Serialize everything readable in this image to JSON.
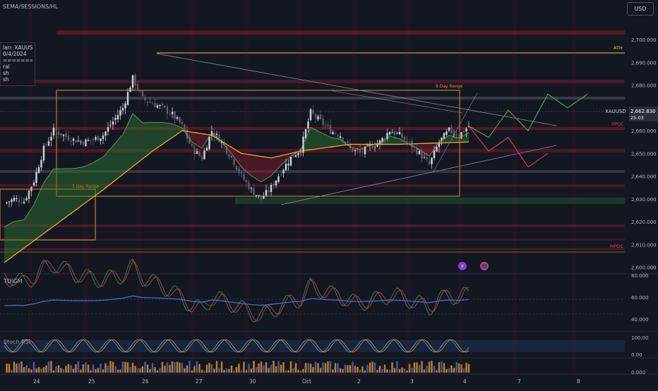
{
  "header": {
    "indicator_title": "SEMA/SESSIONS/HL",
    "currency_button": "USD"
  },
  "legend": {
    "lines": [
      "lan: XAUUSD",
      "0/4/2024",
      "=========",
      "ral",
      "sh",
      "sh"
    ]
  },
  "price_axis": {
    "labels": [
      "2,700.000",
      "2,690.000",
      "2,680.000",
      "2,670.000",
      "2,660.000",
      "2,650.000",
      "2,640.000",
      "2,630.000",
      "2,620.000",
      "2,610.000",
      "2,600.000"
    ],
    "current_symbol": "XAUUSD",
    "current_price": "2,662.830",
    "countdown": "25:03",
    "ath_label": "ATH",
    "ypoc_label": "YPOC",
    "mpoc_label": "MPOC"
  },
  "annotations": {
    "nine_day_range": "9 Day Range",
    "three_day_range": "3 Day Range"
  },
  "tdigm": {
    "title": "TDIGM",
    "axis_labels": [
      "80.000",
      "60.000",
      "40.000"
    ]
  },
  "stoch": {
    "title": "Stoch RSI",
    "axis_labels": [
      "100.00",
      "0.00"
    ]
  },
  "volume": {
    "axis_labels": [
      "0.000"
    ]
  },
  "time_axis": {
    "labels": [
      "24",
      "25",
      "26",
      "27",
      "30",
      "Oct",
      "2",
      "3",
      "4",
      "7",
      "8"
    ]
  },
  "colors": {
    "background": "#131722",
    "bull": "#d1d4dc",
    "ema_orange": "#f5a623",
    "cloud_green": "#2e7d32",
    "cloud_red": "#8b1a2b",
    "projection_green": "#4caf50",
    "projection_red": "#e53950",
    "ath_line": "#f5c542",
    "range_box": "#e8911f"
  },
  "chart_data": {
    "type": "candlestick",
    "title": "",
    "xlabel": "",
    "ylabel": "",
    "ylim": [
      2598,
      2705
    ],
    "x": [
      "24",
      "25",
      "26",
      "27",
      "30",
      "Oct",
      "2",
      "3",
      "4",
      "7",
      "8"
    ],
    "ath": 2685.5,
    "last_price": 2662.83,
    "close_path": [
      [
        0,
        2628
      ],
      [
        4,
        2630
      ],
      [
        8,
        2629
      ],
      [
        12,
        2638
      ],
      [
        16,
        2652
      ],
      [
        20,
        2660
      ],
      [
        24,
        2658
      ],
      [
        28,
        2656
      ],
      [
        32,
        2655
      ],
      [
        36,
        2656
      ],
      [
        40,
        2658
      ],
      [
        44,
        2664
      ],
      [
        48,
        2670
      ],
      [
        52,
        2683
      ],
      [
        56,
        2674
      ],
      [
        60,
        2672
      ],
      [
        64,
        2670
      ],
      [
        68,
        2667
      ],
      [
        72,
        2662
      ],
      [
        76,
        2652
      ],
      [
        80,
        2648
      ],
      [
        84,
        2660
      ],
      [
        88,
        2655
      ],
      [
        92,
        2648
      ],
      [
        96,
        2640
      ],
      [
        100,
        2634
      ],
      [
        104,
        2630
      ],
      [
        108,
        2635
      ],
      [
        112,
        2642
      ],
      [
        116,
        2648
      ],
      [
        120,
        2652
      ],
      [
        124,
        2668
      ],
      [
        128,
        2664
      ],
      [
        132,
        2660
      ],
      [
        136,
        2658
      ],
      [
        140,
        2652
      ],
      [
        144,
        2650
      ],
      [
        148,
        2653
      ],
      [
        152,
        2655
      ],
      [
        156,
        2660
      ],
      [
        160,
        2658
      ],
      [
        164,
        2654
      ],
      [
        168,
        2650
      ],
      [
        172,
        2645
      ],
      [
        176,
        2655
      ],
      [
        180,
        2660
      ],
      [
        184,
        2658
      ],
      [
        188,
        2662
      ]
    ],
    "ema_slow": [
      [
        0,
        2602
      ],
      [
        20,
        2618
      ],
      [
        40,
        2634
      ],
      [
        60,
        2651
      ],
      [
        72,
        2660
      ],
      [
        84,
        2658
      ],
      [
        96,
        2650
      ],
      [
        108,
        2648
      ],
      [
        120,
        2651
      ],
      [
        140,
        2654
      ],
      [
        160,
        2654
      ],
      [
        188,
        2655
      ]
    ],
    "bull_projection": [
      [
        188,
        2662
      ],
      [
        196,
        2657
      ],
      [
        204,
        2669
      ],
      [
        212,
        2660
      ],
      [
        220,
        2676
      ],
      [
        228,
        2670
      ],
      [
        236,
        2676
      ]
    ],
    "bear_projection": [
      [
        188,
        2662
      ],
      [
        196,
        2651
      ],
      [
        204,
        2657
      ],
      [
        212,
        2644
      ],
      [
        220,
        2650
      ]
    ]
  }
}
